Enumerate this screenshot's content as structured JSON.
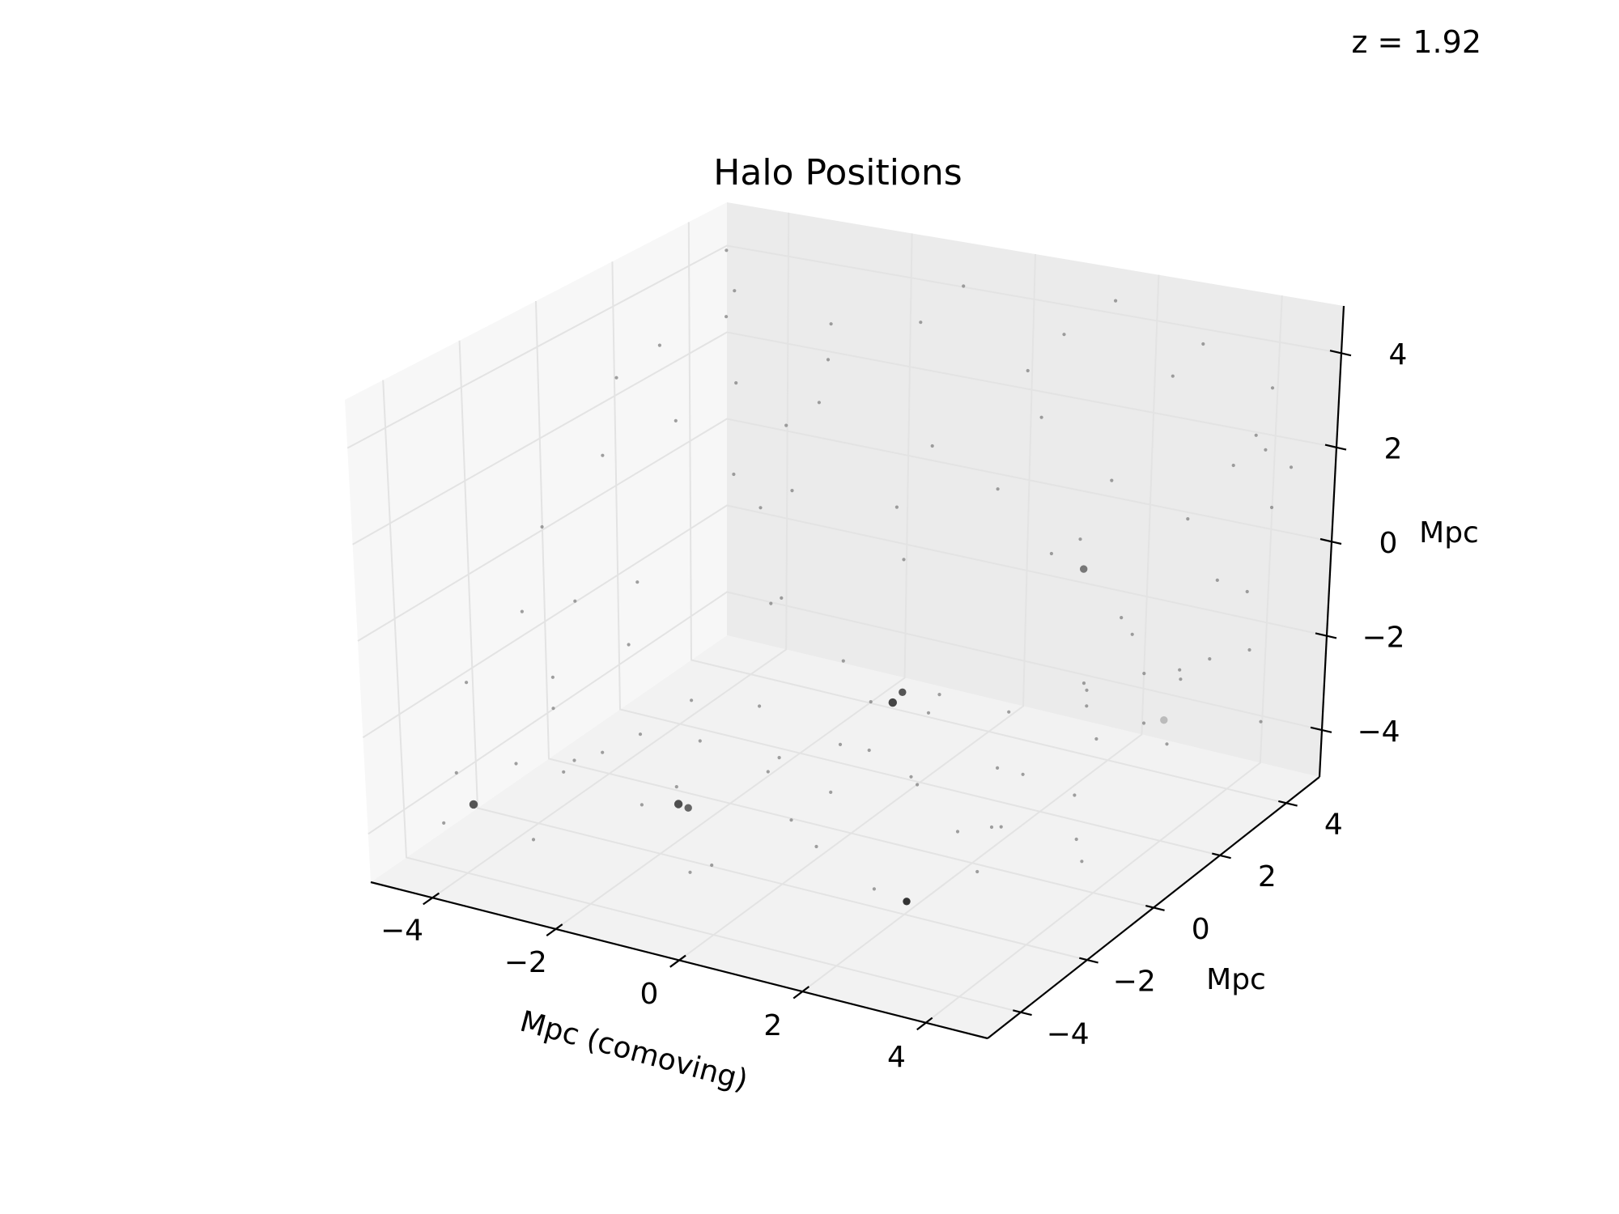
{
  "annotation": "z = 1.92",
  "chart_data": {
    "type": "scatter",
    "projection": "3d",
    "title": "Halo Positions",
    "xlabel": "Mpc (comoving)",
    "ylabel": "Mpc",
    "zlabel": "Mpc",
    "xlim": [
      -5,
      5
    ],
    "ylim": [
      -5,
      5
    ],
    "zlim": [
      -5,
      5
    ],
    "xticks": [
      "−4",
      "−2",
      "0",
      "2",
      "4"
    ],
    "yticks": [
      "−4",
      "−2",
      "0",
      "2",
      "4"
    ],
    "zticks": [
      "−4",
      "−2",
      "0",
      "2",
      "4"
    ],
    "grid": true,
    "marker_color": "#808080",
    "pane_colors": [
      "#f2f2f2",
      "#ebebeb",
      "#f7f7f7"
    ],
    "points": [
      {
        "x": -4.1,
        "y": -3.6,
        "z": -3.8,
        "s": 2.0,
        "c": "#555555"
      },
      {
        "x": -1.0,
        "y": -3.2,
        "z": -3.0,
        "s": 2.0,
        "c": "#4f4f4f"
      },
      {
        "x": 0.1,
        "y": 1.0,
        "z": -2.7,
        "s": 2.0,
        "c": "#444444"
      },
      {
        "x": 0.2,
        "y": 1.1,
        "z": -2.5,
        "s": 1.8,
        "c": "#555555"
      },
      {
        "x": -0.9,
        "y": -3.1,
        "z": -3.1,
        "s": 1.8,
        "c": "#666666"
      },
      {
        "x": 2.2,
        "y": -2.3,
        "z": -4.5,
        "s": 1.8,
        "c": "#333333"
      },
      {
        "x": 1.5,
        "y": 4.0,
        "z": -1.0,
        "s": 1.8,
        "c": "#777777"
      },
      {
        "x": 2.8,
        "y": 4.2,
        "z": -4.0,
        "s": 1.8,
        "c": "#bbbbbb"
      },
      {
        "x": -4.6,
        "y": -3.2,
        "z": -3.5,
        "s": 0.8
      },
      {
        "x": -4.3,
        "y": -4.1,
        "z": -4.0,
        "s": 0.8
      },
      {
        "x": -3.8,
        "y": -2.9,
        "z": -3.2,
        "s": 0.8
      },
      {
        "x": -4.0,
        "y": -1.5,
        "z": -2.8,
        "s": 0.8
      },
      {
        "x": -3.5,
        "y": -1.8,
        "z": -3.6,
        "s": 0.8
      },
      {
        "x": -3.2,
        "y": -3.5,
        "z": -4.3,
        "s": 0.8
      },
      {
        "x": -2.8,
        "y": -2.2,
        "z": -3.0,
        "s": 0.8
      },
      {
        "x": -3.0,
        "y": -0.8,
        "z": -3.4,
        "s": 0.8
      },
      {
        "x": -2.5,
        "y": -3.8,
        "z": -2.5,
        "s": 0.8
      },
      {
        "x": -2.3,
        "y": -1.0,
        "z": -4.2,
        "s": 0.8
      },
      {
        "x": -2.0,
        "y": -2.5,
        "z": -3.7,
        "s": 0.8
      },
      {
        "x": -1.8,
        "y": 0.5,
        "z": -3.1,
        "s": 0.8
      },
      {
        "x": -1.5,
        "y": -1.7,
        "z": -2.6,
        "s": 0.8
      },
      {
        "x": -1.2,
        "y": -0.3,
        "z": -3.9,
        "s": 0.8
      },
      {
        "x": -1.0,
        "y": 1.5,
        "z": -2.4,
        "s": 0.8
      },
      {
        "x": -0.7,
        "y": -2.8,
        "z": -4.4,
        "s": 0.8
      },
      {
        "x": -0.5,
        "y": -1.2,
        "z": -2.9,
        "s": 0.8
      },
      {
        "x": -0.3,
        "y": 0.2,
        "z": -3.3,
        "s": 0.8
      },
      {
        "x": 0.0,
        "y": -0.6,
        "z": -3.8,
        "s": 0.8
      },
      {
        "x": 0.3,
        "y": 2.0,
        "z": -3.0,
        "s": 0.8
      },
      {
        "x": 0.5,
        "y": -1.9,
        "z": -4.1,
        "s": 0.8
      },
      {
        "x": 0.8,
        "y": 0.8,
        "z": -2.6,
        "s": 0.8
      },
      {
        "x": 1.0,
        "y": 2.8,
        "z": -3.6,
        "s": 0.8
      },
      {
        "x": 1.2,
        "y": -0.4,
        "z": -3.2,
        "s": 0.8
      },
      {
        "x": 1.5,
        "y": 1.6,
        "z": -4.0,
        "s": 0.8
      },
      {
        "x": 1.8,
        "y": -1.3,
        "z": -2.7,
        "s": 0.8
      },
      {
        "x": 2.0,
        "y": 3.3,
        "z": -3.1,
        "s": 0.8
      },
      {
        "x": 2.3,
        "y": 0.3,
        "z": -4.3,
        "s": 0.8
      },
      {
        "x": 2.5,
        "y": 2.4,
        "z": -2.8,
        "s": 0.8
      },
      {
        "x": 2.8,
        "y": -0.9,
        "z": -3.5,
        "s": 0.8
      },
      {
        "x": 3.0,
        "y": 1.2,
        "z": -3.9,
        "s": 0.8
      },
      {
        "x": 3.3,
        "y": 3.7,
        "z": -2.5,
        "s": 0.8
      },
      {
        "x": 3.5,
        "y": -2.6,
        "z": -3.3,
        "s": 0.8
      },
      {
        "x": 3.8,
        "y": 0.0,
        "z": -4.4,
        "s": 0.8
      },
      {
        "x": 4.0,
        "y": 2.1,
        "z": -3.0,
        "s": 0.8
      },
      {
        "x": 4.3,
        "y": 4.4,
        "z": -3.7,
        "s": 0.8
      },
      {
        "x": 4.5,
        "y": -1.5,
        "z": -2.9,
        "s": 0.8
      },
      {
        "x": -0.2,
        "y": -4.3,
        "z": -3.6,
        "s": 0.8
      },
      {
        "x": 1.1,
        "y": -3.7,
        "z": -2.4,
        "s": 0.8
      },
      {
        "x": 2.6,
        "y": -4.0,
        "z": -3.2,
        "s": 0.8
      },
      {
        "x": -4.7,
        "y": 4.5,
        "z": 4.2,
        "s": 0.8
      },
      {
        "x": -4.4,
        "y": 4.0,
        "z": 3.0,
        "s": 0.8
      },
      {
        "x": -4.0,
        "y": 3.6,
        "z": 1.8,
        "s": 0.8
      },
      {
        "x": -3.6,
        "y": 4.3,
        "z": 0.6,
        "s": 0.8
      },
      {
        "x": -3.2,
        "y": 3.8,
        "z": -0.5,
        "s": 0.8
      },
      {
        "x": -4.2,
        "y": 4.6,
        "z": -1.6,
        "s": 0.8
      },
      {
        "x": -2.8,
        "y": 4.1,
        "z": 2.4,
        "s": 0.8
      },
      {
        "x": -2.4,
        "y": 3.5,
        "z": 3.6,
        "s": 0.8
      },
      {
        "x": -3.8,
        "y": 3.2,
        "z": 0.0,
        "s": 0.8
      },
      {
        "x": -4.5,
        "y": 2.8,
        "z": 1.2,
        "s": 0.8
      },
      {
        "x": -4.8,
        "y": 2.2,
        "z": -2.2,
        "s": 0.8
      },
      {
        "x": -4.6,
        "y": 1.4,
        "z": 2.8,
        "s": 0.8
      },
      {
        "x": -4.3,
        "y": 0.5,
        "z": 1.6,
        "s": 0.8
      },
      {
        "x": -4.7,
        "y": -0.5,
        "z": 0.4,
        "s": 0.8
      },
      {
        "x": -4.4,
        "y": -1.6,
        "z": -0.8,
        "s": 0.8
      },
      {
        "x": -4.8,
        "y": -2.5,
        "z": -2.0,
        "s": 0.8
      },
      {
        "x": -4.5,
        "y": 0.0,
        "z": -1.4,
        "s": 0.8
      },
      {
        "x": -4.2,
        "y": 1.9,
        "z": 3.4,
        "s": 0.8
      },
      {
        "x": -3.9,
        "y": 3.4,
        "z": 4.0,
        "s": 0.8
      },
      {
        "x": -3.3,
        "y": 4.7,
        "z": 1.0,
        "s": 0.8
      },
      {
        "x": -1.6,
        "y": 4.6,
        "z": 3.3,
        "s": 0.8
      },
      {
        "x": -0.8,
        "y": 4.4,
        "z": 4.4,
        "s": 0.8
      },
      {
        "x": 0.1,
        "y": 4.7,
        "z": 2.6,
        "s": 0.8
      },
      {
        "x": 0.9,
        "y": 4.3,
        "z": 3.8,
        "s": 0.8
      },
      {
        "x": 1.6,
        "y": 4.5,
        "z": 4.6,
        "s": 0.8
      },
      {
        "x": 2.4,
        "y": 4.8,
        "z": 3.0,
        "s": 0.8
      },
      {
        "x": 3.2,
        "y": 4.2,
        "z": 4.2,
        "s": 0.8
      },
      {
        "x": 3.9,
        "y": 4.6,
        "z": 2.2,
        "s": 0.8
      },
      {
        "x": 4.4,
        "y": 4.1,
        "z": 3.6,
        "s": 0.8
      },
      {
        "x": 3.5,
        "y": 4.7,
        "z": 1.4,
        "s": 0.8
      },
      {
        "x": 4.1,
        "y": 4.8,
        "z": 0.6,
        "s": 0.8
      },
      {
        "x": 4.6,
        "y": 4.4,
        "z": 1.8,
        "s": 0.8
      },
      {
        "x": 2.9,
        "y": 4.5,
        "z": 0.2,
        "s": 0.8
      },
      {
        "x": 1.8,
        "y": 4.2,
        "z": 0.9,
        "s": 0.8
      },
      {
        "x": 0.4,
        "y": 4.6,
        "z": 1.7,
        "s": 0.8
      },
      {
        "x": -0.4,
        "y": 4.8,
        "z": -0.2,
        "s": 0.8
      },
      {
        "x": -1.2,
        "y": 4.3,
        "z": 0.8,
        "s": 0.8
      },
      {
        "x": -2.0,
        "y": 4.7,
        "z": -1.0,
        "s": 0.8
      },
      {
        "x": 4.3,
        "y": 3.8,
        "z": -0.6,
        "s": 0.8
      },
      {
        "x": 4.7,
        "y": 3.2,
        "z": -1.4,
        "s": 0.8
      },
      {
        "x": 4.5,
        "y": 2.5,
        "z": 0.4,
        "s": 0.8
      },
      {
        "x": 4.8,
        "y": 1.8,
        "z": -0.8,
        "s": 0.8
      },
      {
        "x": 4.2,
        "y": 1.0,
        "z": -1.9,
        "s": 0.8
      },
      {
        "x": 4.6,
        "y": 0.2,
        "z": -0.3,
        "s": 0.8
      },
      {
        "x": 4.4,
        "y": -0.8,
        "z": -1.2,
        "s": 0.8
      },
      {
        "x": 4.7,
        "y": -1.8,
        "z": 0.6,
        "s": 0.8
      },
      {
        "x": 4.3,
        "y": -2.8,
        "z": -0.9,
        "s": 0.8
      },
      {
        "x": 4.6,
        "y": 3.6,
        "z": 2.6,
        "s": 0.8
      },
      {
        "x": 3.7,
        "y": 3.0,
        "z": -2.2,
        "s": 0.8
      },
      {
        "x": 3.1,
        "y": 2.6,
        "z": -1.2,
        "s": 0.8
      },
      {
        "x": 2.2,
        "y": 3.9,
        "z": -1.8,
        "s": 0.8
      },
      {
        "x": 1.3,
        "y": 3.4,
        "z": -0.4,
        "s": 0.8
      },
      {
        "x": -2.6,
        "y": 2.2,
        "z": -2.0,
        "s": 0.8
      },
      {
        "x": -1.9,
        "y": 1.3,
        "z": -1.2,
        "s": 0.8
      },
      {
        "x": -3.4,
        "y": -0.4,
        "z": -1.8,
        "s": 0.8
      },
      {
        "x": 0.7,
        "y": -0.7,
        "z": -1.6,
        "s": 0.8
      },
      {
        "x": -0.6,
        "y": 2.5,
        "z": -0.6,
        "s": 0.8
      },
      {
        "x": 2.7,
        "y": 1.7,
        "z": 1.2,
        "s": 0.8
      },
      {
        "x": -1.4,
        "y": -2.1,
        "z": -1.5,
        "s": 0.8
      },
      {
        "x": 1.9,
        "y": -2.9,
        "z": -1.1,
        "s": 0.8
      },
      {
        "x": 3.6,
        "y": -3.4,
        "z": -2.0,
        "s": 0.8
      },
      {
        "x": -3.1,
        "y": -3.0,
        "z": -1.1,
        "s": 0.8
      }
    ]
  }
}
